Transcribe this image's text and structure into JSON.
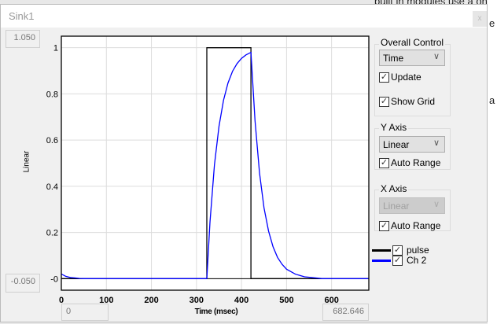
{
  "background": {
    "text": "built in modules use a one pole",
    "chars": [
      "e",
      "a"
    ]
  },
  "window": {
    "title": "Sink1",
    "close": "x"
  },
  "ranges": {
    "ymax": "1.050",
    "ymin": "-0.050",
    "xmin": "0",
    "xmax": "682.646"
  },
  "controls": {
    "overall": {
      "label": "Overall Control",
      "mode": "Time",
      "update": "Update",
      "update_checked": true,
      "grid": "Show Grid",
      "grid_checked": true
    },
    "yaxis": {
      "label": "Y Axis",
      "scale": "Linear",
      "auto": "Auto Range",
      "auto_checked": true
    },
    "xaxis": {
      "label": "X Axis",
      "scale": "Linear",
      "scale_disabled": true,
      "auto": "Auto Range",
      "auto_checked": true
    }
  },
  "legend": [
    {
      "name": "pulse",
      "color": "#000000",
      "checked": true
    },
    {
      "name": "Ch 2",
      "color": "#0000ff",
      "checked": true
    }
  ],
  "chart_data": {
    "type": "line",
    "xlabel": "Time (msec)",
    "ylabel": "Linear",
    "xlim": [
      0,
      682.646
    ],
    "ylim": [
      -0.05,
      1.05
    ],
    "xticks": [
      "0",
      "100",
      "200",
      "300",
      "400",
      "500",
      "600"
    ],
    "yticks": [
      "-0",
      "0.2",
      "0.4",
      "0.6",
      "0.8",
      "1"
    ],
    "grid": true,
    "series": [
      {
        "name": "pulse",
        "color": "#000000",
        "x": [
          0,
          323,
          323,
          421,
          421,
          682.646
        ],
        "y": [
          0,
          0,
          1,
          1,
          0,
          0
        ]
      },
      {
        "name": "Ch 2",
        "color": "#0000ff",
        "x": [
          0,
          10,
          20,
          30,
          40,
          50,
          323,
          330,
          340,
          350,
          360,
          370,
          380,
          390,
          400,
          410,
          421,
          430,
          440,
          450,
          460,
          470,
          480,
          490,
          500,
          520,
          540,
          560,
          580,
          682.646
        ],
        "y": [
          0.02,
          0.01,
          0.005,
          0.003,
          0.001,
          0,
          0,
          0.244,
          0.493,
          0.66,
          0.772,
          0.847,
          0.898,
          0.931,
          0.954,
          0.969,
          0.98,
          0.684,
          0.458,
          0.307,
          0.206,
          0.138,
          0.092,
          0.062,
          0.041,
          0.019,
          0.008,
          0.004,
          0,
          0
        ]
      }
    ]
  }
}
